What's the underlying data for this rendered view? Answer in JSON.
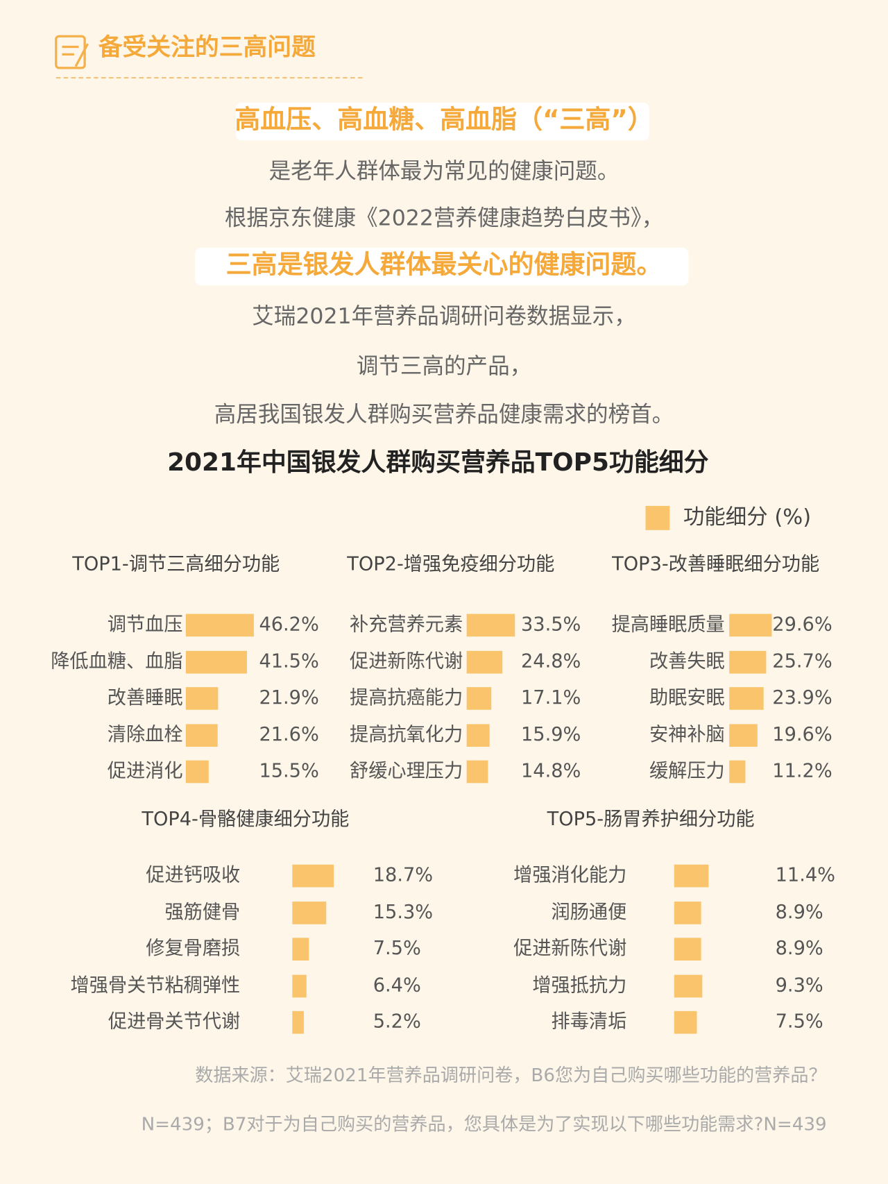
{
  "header": {
    "title": "备受关注的三高问题"
  },
  "intro": [
    "高血压、高血糖、高血脂（“三高”）",
    "是老年人群体最为常见的健康问题。",
    "根据京东健康《2022营养健康趋势白皮书》，",
    "三高是银发人群体最关心的健康问题。",
    "艾瑞2021年营养品调研问卷数据显示，",
    "调节三高的产品，",
    "高居我国银发人群购买营养品健康需求的榜首。"
  ],
  "main_title": "2021年中国银发人群购买营养品TOP5功能细分",
  "legend": {
    "name": "功能细分 (%)",
    "color": "#f9c46b"
  },
  "chart_data": [
    {
      "type": "bar",
      "title": "TOP1-调节三高细分功能",
      "color": "#f9c46b",
      "categories": [
        "调节血压",
        "降低血糖、血脂",
        "改善睡眠",
        "清除血栓",
        "促进消化"
      ],
      "values": [
        46.2,
        41.5,
        21.9,
        21.6,
        15.5
      ],
      "value_labels": [
        "46.2%",
        "41.5%",
        "21.9%",
        "21.6%",
        "15.5%"
      ]
    },
    {
      "type": "bar",
      "title": "TOP2-增强免疫细分功能",
      "color": "#f9c46b",
      "categories": [
        "补充营养元素",
        "促进新陈代谢",
        "提高抗癌能力",
        "提高抗氧化力",
        "舒缓心理压力"
      ],
      "values": [
        33.5,
        24.8,
        17.1,
        15.9,
        14.8
      ],
      "value_labels": [
        "33.5%",
        "24.8%",
        "17.1%",
        "15.9%",
        "14.8%"
      ]
    },
    {
      "type": "bar",
      "title": "TOP3-改善睡眠细分功能",
      "color": "#f9c46b",
      "categories": [
        "提高睡眠质量",
        "改善失眠",
        "助眠安眠",
        "安神补脑",
        "缓解压力"
      ],
      "values": [
        29.6,
        25.7,
        23.9,
        19.6,
        11.2
      ],
      "value_labels": [
        "29.6%",
        "25.7%",
        "23.9%",
        "19.6%",
        "11.2%"
      ]
    },
    {
      "type": "bar",
      "title": "TOP4-骨骼健康细分功能",
      "color": "#f9c46b",
      "categories": [
        "促进钙吸收",
        "强筋健骨",
        "修复骨磨损",
        "增强骨关节粘稠弹性",
        "促进骨关节代谢"
      ],
      "values": [
        18.7,
        15.3,
        7.5,
        6.4,
        5.2
      ],
      "value_labels": [
        "18.7%",
        "15.3%",
        "7.5%",
        "6.4%",
        "5.2%"
      ]
    },
    {
      "type": "bar",
      "title": "TOP5-肠胃养护细分功能",
      "color": "#f9c46b",
      "categories": [
        "增强消化能力",
        "润肠通便",
        "促进新陈代谢",
        "增强抵抗力",
        "排毒清垢"
      ],
      "values": [
        11.4,
        8.9,
        8.9,
        9.3,
        7.5
      ],
      "value_labels": [
        "11.4%",
        "8.9%",
        "8.9%",
        "9.3%",
        "7.5%"
      ]
    }
  ],
  "footnotes": [
    "数据来源：艾瑞2021年营养品调研问卷，B6您为自己购买哪些功能的营养品？",
    "N=439；B7对于为自己购买的营养品，您具体是为了实现以下哪些功能需求?N=439"
  ]
}
